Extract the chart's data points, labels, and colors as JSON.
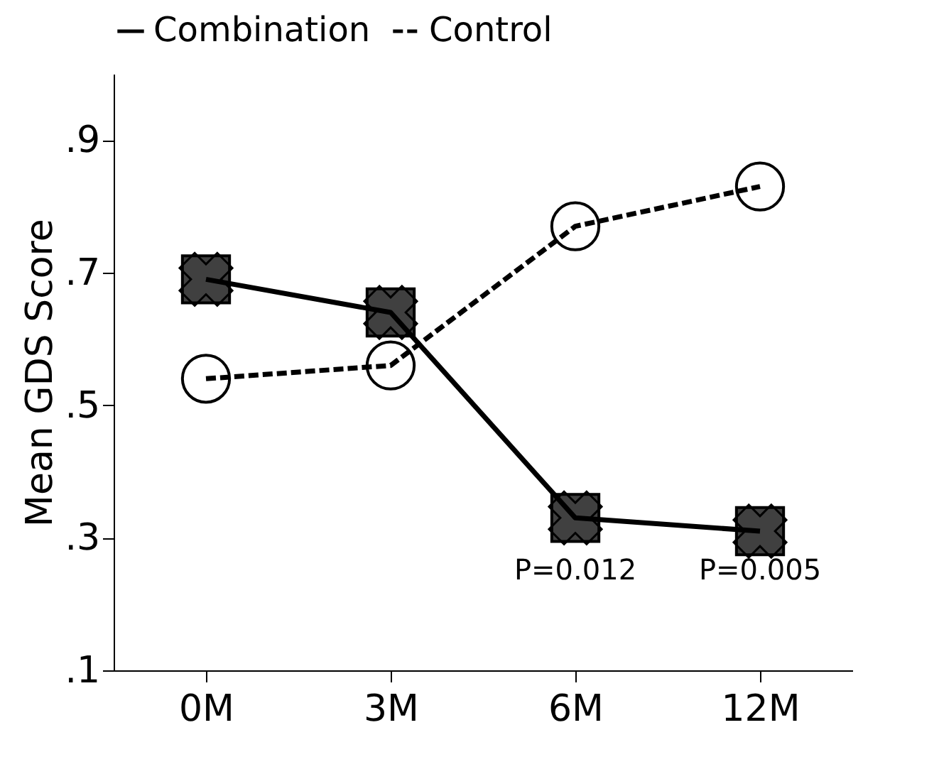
{
  "chart_data": {
    "type": "line",
    "ylabel": "Mean GDS Score",
    "categories": [
      "0M",
      "3M",
      "6M",
      "12M"
    ],
    "series": [
      {
        "name": "Combination",
        "color": "#000000",
        "values": [
          0.69,
          0.64,
          0.33,
          0.31
        ],
        "marker": "square",
        "line_style": "solid"
      },
      {
        "name": "Control",
        "color": "#000000",
        "values": [
          0.54,
          0.56,
          0.77,
          0.83
        ],
        "marker": "circle",
        "line_style": "dashed"
      }
    ],
    "ylim": [
      0.1,
      1.0
    ],
    "yticks": [
      {
        "value": 0.1,
        "label": ".1"
      },
      {
        "value": 0.3,
        "label": ".3"
      },
      {
        "value": 0.5,
        "label": ".5"
      },
      {
        "value": 0.7,
        "label": ".7"
      },
      {
        "value": 0.9,
        "label": ".9"
      }
    ],
    "annotations": [
      "P=0.012",
      "P=0.005"
    ],
    "legend": "top",
    "grid": false
  }
}
